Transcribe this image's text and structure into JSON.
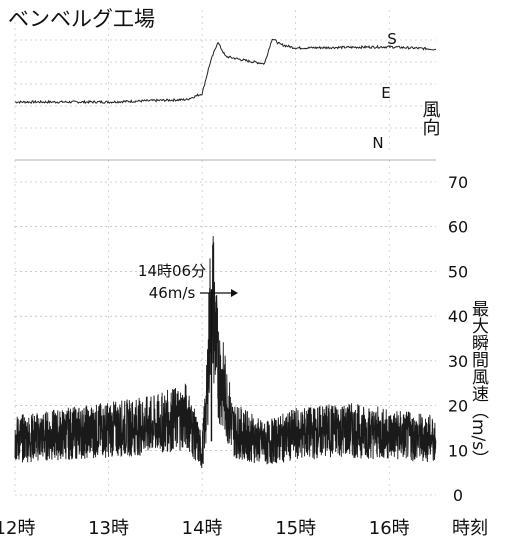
{
  "chart_data": [
    {
      "type": "line",
      "title": "ベンベルグ工場",
      "ylabel": "風向",
      "y_ticks": [
        "N",
        "E",
        "S"
      ],
      "x": [
        "12:00",
        "13:00",
        "13:50",
        "14:00",
        "14:05",
        "14:10",
        "14:15",
        "14:30",
        "14:40",
        "14:45",
        "14:50",
        "15:00",
        "16:00",
        "16:30"
      ],
      "values": [
        0.4,
        0.4,
        0.42,
        0.47,
        0.72,
        0.9,
        0.78,
        0.74,
        0.72,
        0.93,
        0.88,
        0.85,
        0.86,
        0.84
      ]
    },
    {
      "type": "line",
      "ylabel": "最大瞬間風速（m/s）",
      "xlabel": "時刻",
      "xlim": [
        "12:00",
        "16:30"
      ],
      "ylim": [
        0,
        70
      ],
      "x_ticks": [
        "12時",
        "13時",
        "14時",
        "15時",
        "16時"
      ],
      "y_ticks": [
        0,
        10,
        20,
        30,
        40,
        50,
        60,
        70
      ],
      "x": [
        "12:00",
        "12:30",
        "13:00",
        "13:30",
        "13:50",
        "14:00",
        "14:03",
        "14:06",
        "14:10",
        "14:20",
        "14:40",
        "15:00",
        "15:30",
        "16:00",
        "16:30"
      ],
      "values": [
        12,
        13,
        14,
        15,
        17,
        9,
        20,
        46,
        28,
        14,
        11,
        13,
        14,
        13,
        12
      ],
      "annotation": {
        "x": "14:06",
        "label_line1": "14時06分",
        "label_line2": "46m/s"
      }
    }
  ]
}
